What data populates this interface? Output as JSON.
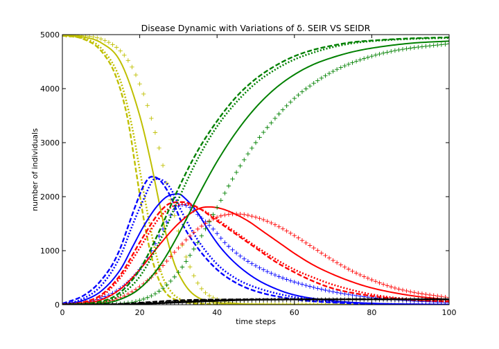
{
  "chart_data": {
    "type": "line",
    "title": "Disease Dynamic with Variations of δ. SEIR VS SEIDR",
    "xlabel": "time steps",
    "ylabel": "number of individuals",
    "xlim": [
      0,
      100
    ],
    "ylim": [
      0,
      5000
    ],
    "xticks": [
      0,
      20,
      40,
      60,
      80,
      100
    ],
    "yticks": [
      0,
      1000,
      2000,
      3000,
      4000,
      5000
    ],
    "grid": false,
    "legend": "none",
    "colors": {
      "S": "#bfbf00",
      "E": "#0000ff",
      "I": "#ff0000",
      "R": "#008000",
      "D": "#000000"
    },
    "series": [
      {
        "color": "#bfbf00",
        "style": "dashed",
        "x": [
          0,
          5,
          10,
          14,
          17,
          19,
          21,
          23,
          25,
          27,
          29,
          35,
          45,
          100
        ],
        "y": [
          4980,
          4930,
          4700,
          4200,
          3400,
          2500,
          1600,
          900,
          450,
          200,
          100,
          20,
          5,
          0
        ]
      },
      {
        "color": "#bfbf00",
        "style": "dashdot",
        "x": [
          0,
          5,
          10,
          15,
          18,
          20,
          22,
          24,
          26,
          28,
          30,
          35,
          45,
          100
        ],
        "y": [
          4980,
          4940,
          4750,
          4150,
          3300,
          2500,
          1700,
          1000,
          500,
          250,
          120,
          30,
          5,
          0
        ]
      },
      {
        "color": "#bfbf00",
        "style": "solid",
        "x": [
          0,
          5,
          10,
          15,
          20,
          23,
          25,
          27,
          29,
          31,
          33,
          36,
          40,
          50,
          100
        ],
        "y": [
          4985,
          4960,
          4850,
          4500,
          3500,
          2600,
          1900,
          1250,
          750,
          450,
          250,
          100,
          40,
          10,
          0
        ]
      },
      {
        "color": "#bfbf00",
        "style": "plus",
        "x": [
          0,
          5,
          10,
          15,
          18,
          21,
          23,
          25,
          27,
          29,
          31,
          33,
          35,
          37,
          40,
          45,
          55,
          100
        ],
        "y": [
          4990,
          4980,
          4920,
          4700,
          4400,
          3900,
          3450,
          2900,
          2250,
          1650,
          1100,
          700,
          400,
          220,
          100,
          30,
          5,
          0
        ]
      },
      {
        "color": "#0000ff",
        "style": "dashed",
        "x": [
          0,
          5,
          8,
          10,
          13,
          15,
          17,
          19,
          21,
          23,
          25,
          28,
          31,
          35,
          40,
          45,
          50,
          60,
          70,
          80,
          90,
          100
        ],
        "y": [
          20,
          150,
          300,
          450,
          750,
          1050,
          1450,
          1850,
          2200,
          2370,
          2320,
          2000,
          1500,
          1050,
          650,
          400,
          250,
          100,
          40,
          15,
          5,
          2
        ]
      },
      {
        "color": "#0000ff",
        "style": "dashdot",
        "x": [
          0,
          5,
          10,
          15,
          18,
          21,
          24,
          26,
          28,
          31,
          35,
          40,
          45,
          50,
          60,
          70,
          80,
          90,
          100
        ],
        "y": [
          10,
          100,
          350,
          900,
          1450,
          1950,
          2330,
          2300,
          2150,
          1700,
          1200,
          750,
          480,
          320,
          140,
          55,
          20,
          8,
          3
        ]
      },
      {
        "color": "#0000ff",
        "style": "solid",
        "x": [
          0,
          5,
          10,
          15,
          18,
          21,
          24,
          27,
          30,
          32,
          35,
          38,
          41,
          45,
          50,
          55,
          60,
          70,
          80,
          90,
          100
        ],
        "y": [
          10,
          70,
          250,
          650,
          1050,
          1450,
          1780,
          2000,
          2050,
          1950,
          1700,
          1350,
          1050,
          750,
          480,
          300,
          180,
          70,
          25,
          10,
          3
        ]
      },
      {
        "color": "#0000ff",
        "style": "plus",
        "x": [
          0,
          5,
          10,
          15,
          20,
          23,
          26,
          29,
          31,
          33,
          36,
          39,
          42,
          46,
          50,
          55,
          60,
          65,
          70,
          80,
          90,
          100
        ],
        "y": [
          5,
          30,
          120,
          300,
          650,
          1000,
          1400,
          1760,
          1850,
          1800,
          1600,
          1400,
          1150,
          900,
          720,
          550,
          420,
          320,
          240,
          130,
          70,
          40
        ]
      },
      {
        "color": "#ff0000",
        "style": "dashed",
        "x": [
          0,
          5,
          10,
          15,
          20,
          25,
          28,
          31,
          35,
          40,
          45,
          50,
          55,
          60,
          65,
          70,
          80,
          90,
          100
        ],
        "y": [
          5,
          40,
          180,
          550,
          1150,
          1700,
          1880,
          1900,
          1800,
          1550,
          1300,
          1050,
          800,
          600,
          430,
          300,
          160,
          90,
          60
        ]
      },
      {
        "color": "#ff0000",
        "style": "dashdot",
        "x": [
          0,
          5,
          10,
          15,
          20,
          25,
          28,
          31,
          34,
          38,
          42,
          46,
          50,
          55,
          60,
          65,
          70,
          80,
          90,
          100
        ],
        "y": [
          5,
          30,
          150,
          500,
          1050,
          1600,
          1800,
          1860,
          1820,
          1680,
          1480,
          1280,
          1080,
          850,
          650,
          500,
          370,
          190,
          100,
          55
        ]
      },
      {
        "color": "#ff0000",
        "style": "solid",
        "x": [
          0,
          5,
          10,
          15,
          20,
          25,
          30,
          35,
          38,
          41,
          44,
          48,
          52,
          56,
          60,
          65,
          70,
          75,
          80,
          90,
          100
        ],
        "y": [
          5,
          20,
          90,
          290,
          650,
          1100,
          1500,
          1770,
          1810,
          1780,
          1700,
          1550,
          1350,
          1150,
          950,
          730,
          560,
          420,
          310,
          170,
          90
        ]
      },
      {
        "color": "#ff0000",
        "style": "plus",
        "x": [
          0,
          5,
          10,
          15,
          20,
          25,
          30,
          35,
          40,
          45,
          50,
          55,
          60,
          65,
          70,
          75,
          80,
          85,
          90,
          100
        ],
        "y": [
          2,
          10,
          40,
          130,
          330,
          650,
          1050,
          1400,
          1620,
          1680,
          1620,
          1480,
          1280,
          1050,
          820,
          620,
          460,
          330,
          240,
          130
        ]
      },
      {
        "color": "#008000",
        "style": "dashed",
        "x": [
          0,
          10,
          15,
          20,
          25,
          30,
          35,
          40,
          45,
          50,
          55,
          60,
          65,
          70,
          75,
          80,
          90,
          100
        ],
        "y": [
          0,
          60,
          230,
          650,
          1350,
          2150,
          2850,
          3400,
          3850,
          4180,
          4420,
          4600,
          4720,
          4800,
          4860,
          4890,
          4930,
          4950
        ]
      },
      {
        "color": "#008000",
        "style": "dashdot",
        "x": [
          0,
          10,
          15,
          20,
          25,
          30,
          35,
          40,
          45,
          50,
          55,
          60,
          65,
          70,
          75,
          80,
          90,
          100
        ],
        "y": [
          0,
          40,
          180,
          520,
          1150,
          1950,
          2700,
          3300,
          3750,
          4100,
          4350,
          4540,
          4670,
          4770,
          4840,
          4880,
          4920,
          4940
        ]
      },
      {
        "color": "#008000",
        "style": "solid",
        "x": [
          0,
          10,
          15,
          20,
          25,
          30,
          35,
          40,
          45,
          50,
          55,
          60,
          65,
          70,
          75,
          80,
          90,
          100
        ],
        "y": [
          0,
          20,
          100,
          300,
          700,
          1300,
          2000,
          2650,
          3200,
          3650,
          4000,
          4260,
          4450,
          4580,
          4680,
          4750,
          4840,
          4880
        ]
      },
      {
        "color": "#008000",
        "style": "plus",
        "x": [
          0,
          10,
          15,
          20,
          25,
          30,
          35,
          40,
          45,
          50,
          55,
          60,
          65,
          70,
          75,
          80,
          85,
          90,
          100
        ],
        "y": [
          0,
          5,
          20,
          80,
          250,
          600,
          1150,
          1800,
          2450,
          3000,
          3450,
          3820,
          4100,
          4320,
          4480,
          4600,
          4690,
          4750,
          4830
        ]
      },
      {
        "color": "#000000",
        "style": "dashed",
        "x": [
          0,
          10,
          15,
          20,
          25,
          30,
          35,
          40,
          45,
          50,
          60,
          70,
          80,
          90,
          100
        ],
        "y": [
          0,
          5,
          15,
          35,
          60,
          80,
          90,
          95,
          97,
          98,
          100,
          100,
          100,
          100,
          100
        ]
      },
      {
        "color": "#000000",
        "style": "dashdot",
        "x": [
          0,
          10,
          15,
          20,
          25,
          30,
          35,
          40,
          45,
          50,
          60,
          70,
          80,
          90,
          100
        ],
        "y": [
          0,
          3,
          10,
          25,
          45,
          65,
          80,
          88,
          93,
          96,
          98,
          99,
          100,
          100,
          100
        ]
      },
      {
        "color": "#000000",
        "style": "solid",
        "x": [
          0,
          10,
          15,
          20,
          25,
          30,
          35,
          40,
          45,
          50,
          60,
          70,
          80,
          90,
          100
        ],
        "y": [
          0,
          2,
          6,
          15,
          30,
          50,
          65,
          78,
          86,
          91,
          95,
          97,
          98,
          99,
          99
        ]
      },
      {
        "color": "#000000",
        "style": "plus",
        "x": [
          0,
          10,
          15,
          20,
          25,
          30,
          35,
          40,
          45,
          50,
          60,
          70,
          80,
          90,
          100
        ],
        "y": [
          0,
          1,
          3,
          8,
          18,
          32,
          48,
          62,
          74,
          82,
          90,
          94,
          96,
          97,
          98
        ]
      }
    ]
  }
}
